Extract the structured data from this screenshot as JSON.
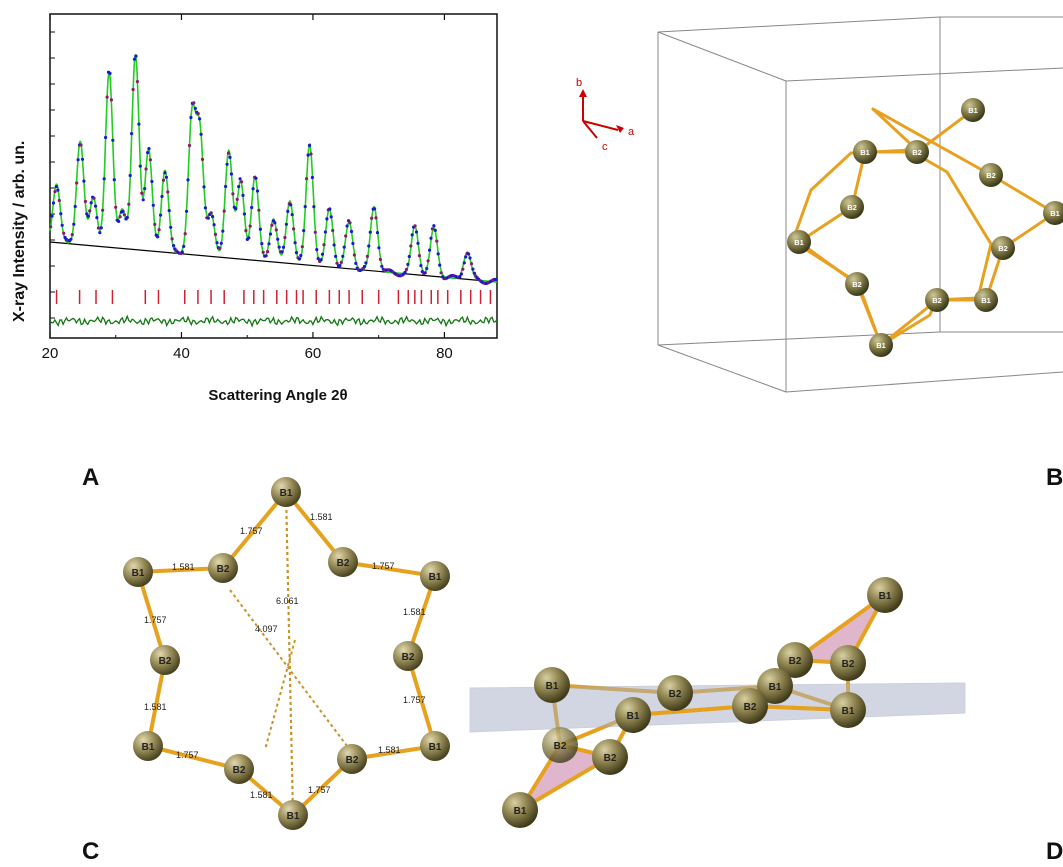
{
  "labels": {
    "A": "A",
    "B": "B",
    "C": "C",
    "D": "D"
  },
  "chart_data": {
    "type": "line",
    "title": "",
    "xlabel": "Scattering Angle 2θ",
    "ylabel": "X-ray Intensity / arb. un.",
    "xlim": [
      20,
      88
    ],
    "xticks": [
      20,
      40,
      60,
      80
    ],
    "series_colors": {
      "observed": "#1a1acc",
      "calculated": "#22cc22",
      "background": "#000000",
      "difference": "#117711",
      "reflections": "#cc2233"
    },
    "peaks": [
      {
        "x": 21.0,
        "h": 0.3
      },
      {
        "x": 24.6,
        "h": 0.53
      },
      {
        "x": 26.6,
        "h": 0.25
      },
      {
        "x": 29.0,
        "h": 0.9
      },
      {
        "x": 31.0,
        "h": 0.2
      },
      {
        "x": 33.0,
        "h": 1.0
      },
      {
        "x": 35.0,
        "h": 0.52
      },
      {
        "x": 37.5,
        "h": 0.42
      },
      {
        "x": 41.6,
        "h": 0.7
      },
      {
        "x": 42.8,
        "h": 0.62
      },
      {
        "x": 44.5,
        "h": 0.22
      },
      {
        "x": 47.2,
        "h": 0.55
      },
      {
        "x": 49.0,
        "h": 0.4
      },
      {
        "x": 51.2,
        "h": 0.43
      },
      {
        "x": 54.0,
        "h": 0.22
      },
      {
        "x": 56.5,
        "h": 0.32
      },
      {
        "x": 59.5,
        "h": 0.62
      },
      {
        "x": 62.5,
        "h": 0.3
      },
      {
        "x": 65.5,
        "h": 0.24
      },
      {
        "x": 69.3,
        "h": 0.33
      },
      {
        "x": 75.5,
        "h": 0.25
      },
      {
        "x": 78.4,
        "h": 0.25
      },
      {
        "x": 83.5,
        "h": 0.14
      }
    ],
    "reflections": [
      21,
      24.5,
      27,
      29.5,
      34.5,
      36.5,
      40.5,
      42.5,
      44.5,
      46.5,
      49.5,
      51,
      52.5,
      54.5,
      56,
      57.5,
      58.5,
      60.5,
      62.5,
      64,
      65.5,
      67.5,
      70,
      73,
      74.5,
      75.5,
      76.5,
      78,
      79,
      80.5,
      82.5,
      84,
      85.5,
      87
    ]
  },
  "axes": {
    "a": "a",
    "b": "b",
    "c": "c"
  },
  "atoms": {
    "b1": "B1",
    "b2": "B2"
  },
  "distances": {
    "d1": "1.757",
    "d2": "1.581",
    "long1": "6.061",
    "long2": "4.097"
  }
}
